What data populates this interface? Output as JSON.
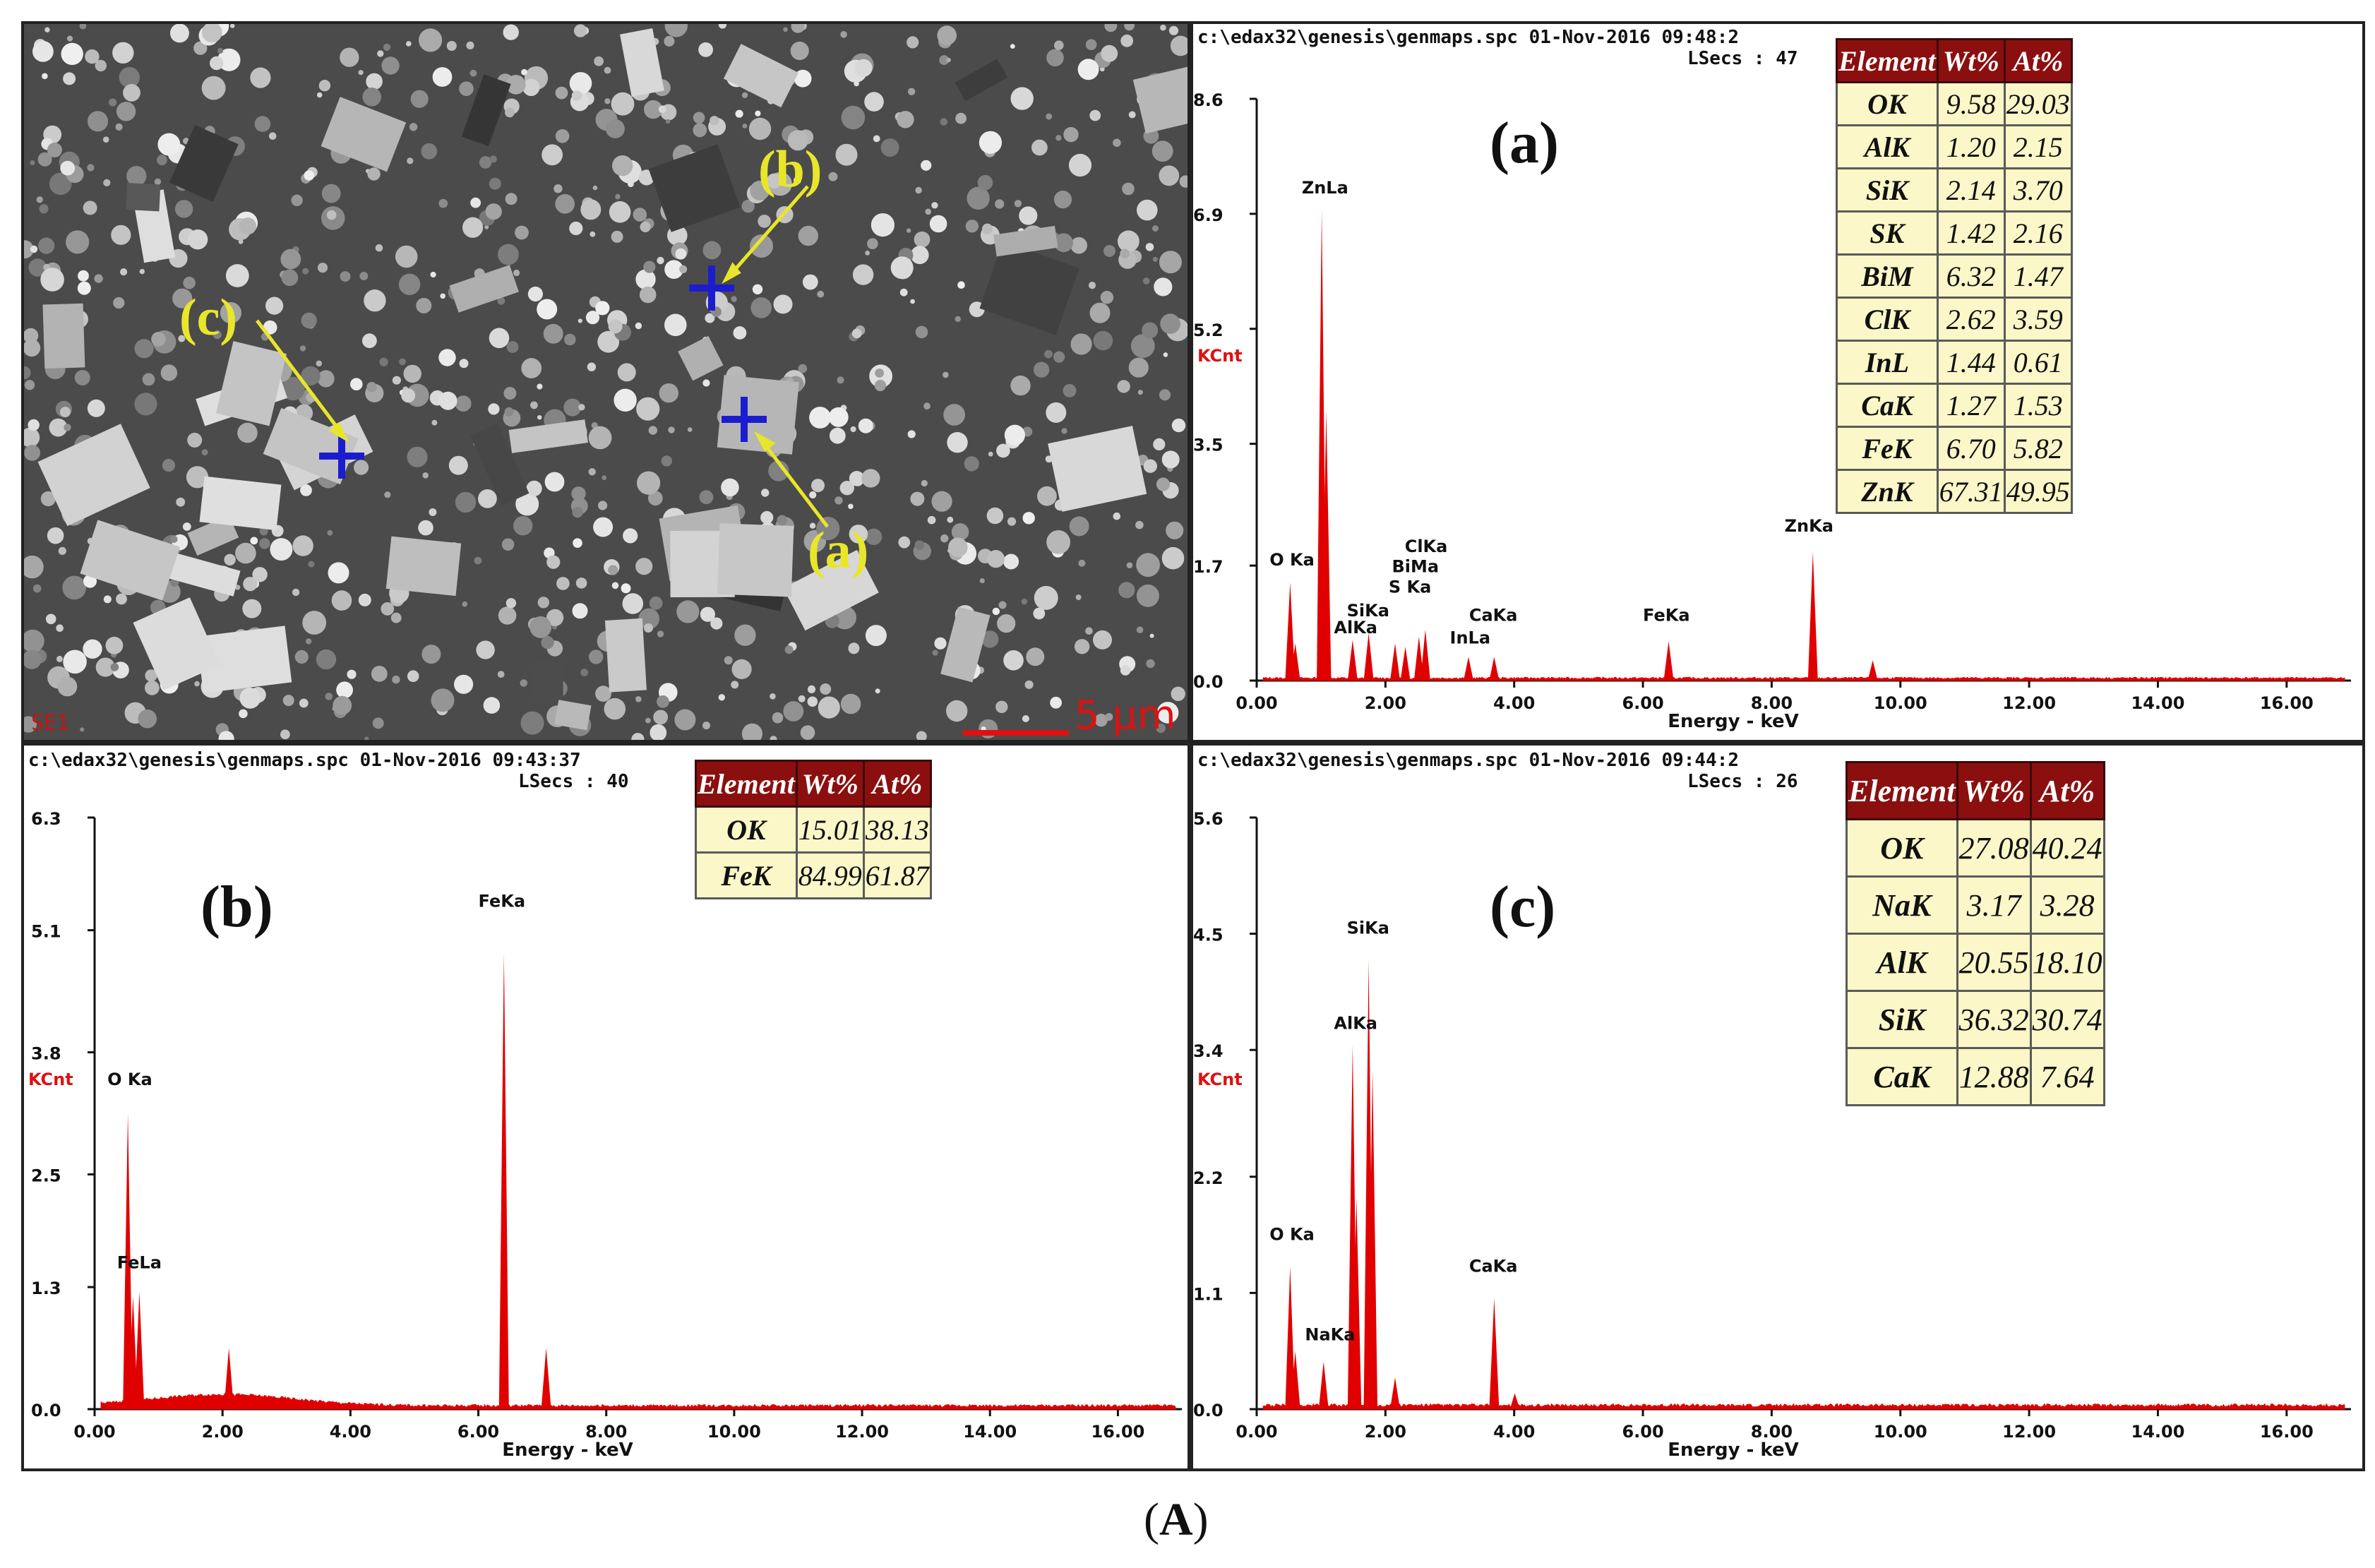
{
  "figure_caption": {
    "open": "(",
    "letter": "A",
    "close": ")"
  },
  "sem": {
    "corner_label": "SE1",
    "scale_bar": "5 μm",
    "markers": [
      {
        "label": "(a)",
        "color": "#e8e62a"
      },
      {
        "label": "(b)",
        "color": "#e8e62a"
      },
      {
        "label": "(c)",
        "color": "#e8e62a"
      }
    ],
    "cross_color": "#1c1ccf"
  },
  "colors": {
    "spectrum": "#e00000",
    "table_header": "#8b0f0f",
    "table_cell": "#fbf7c8"
  },
  "table_headers": [
    "Element",
    "Wt%",
    "At%"
  ],
  "chart_data": [
    {
      "type": "line",
      "panel_label": "(a)",
      "header_line1": "c:\\edax32\\genesis\\genmaps.spc  01-Nov-2016 09:48:2",
      "header_line2": "LSecs :  47",
      "xlabel": "Energy - keV",
      "ylabel": "KCnt",
      "xlim": [
        0,
        17
      ],
      "ylim": [
        0,
        8.6
      ],
      "x_ticks": [
        "0.00",
        "2.00",
        "4.00",
        "6.00",
        "8.00",
        "10.00",
        "12.00",
        "14.00",
        "16.00"
      ],
      "y_ticks": [
        "0.0",
        "1.7",
        "3.5",
        "5.2",
        "6.9",
        "8.6"
      ],
      "peaks": [
        {
          "x": 0.52,
          "y": 1.45
        },
        {
          "x": 0.6,
          "y": 0.55
        },
        {
          "x": 1.01,
          "y": 6.95
        },
        {
          "x": 1.08,
          "y": 4.0
        },
        {
          "x": 1.49,
          "y": 0.6
        },
        {
          "x": 1.74,
          "y": 0.7
        },
        {
          "x": 2.31,
          "y": 0.5
        },
        {
          "x": 2.52,
          "y": 0.65
        },
        {
          "x": 2.62,
          "y": 0.75
        },
        {
          "x": 2.15,
          "y": 0.55
        },
        {
          "x": 3.29,
          "y": 0.35
        },
        {
          "x": 3.69,
          "y": 0.35
        },
        {
          "x": 6.4,
          "y": 0.58
        },
        {
          "x": 8.64,
          "y": 1.9
        },
        {
          "x": 9.57,
          "y": 0.3
        }
      ],
      "peak_labels": [
        {
          "text": "O Ka",
          "x": 0.2,
          "y": 1.7
        },
        {
          "text": "ZnLa",
          "x": 0.7,
          "y": 7.2
        },
        {
          "text": "SiKa",
          "x": 1.4,
          "y": 0.95
        },
        {
          "text": "AlKa",
          "x": 1.2,
          "y": 0.7
        },
        {
          "text": "ClKa",
          "x": 2.3,
          "y": 1.9
        },
        {
          "text": "BiMa",
          "x": 2.1,
          "y": 1.6
        },
        {
          "text": "S Ka",
          "x": 2.05,
          "y": 1.3
        },
        {
          "text": "CaKa",
          "x": 3.3,
          "y": 0.88
        },
        {
          "text": "InLa",
          "x": 3.0,
          "y": 0.55
        },
        {
          "text": "FeKa",
          "x": 6.0,
          "y": 0.88
        },
        {
          "text": "ZnKa",
          "x": 8.2,
          "y": 2.2
        }
      ],
      "table": [
        [
          "OK",
          "9.58",
          "29.03"
        ],
        [
          "AlK",
          "1.20",
          "2.15"
        ],
        [
          "SiK",
          "2.14",
          "3.70"
        ],
        [
          "SK",
          "1.42",
          "2.16"
        ],
        [
          "BiM",
          "6.32",
          "1.47"
        ],
        [
          "ClK",
          "2.62",
          "3.59"
        ],
        [
          "InL",
          "1.44",
          "0.61"
        ],
        [
          "CaK",
          "1.27",
          "1.53"
        ],
        [
          "FeK",
          "6.70",
          "5.82"
        ],
        [
          "ZnK",
          "67.31",
          "49.95"
        ]
      ]
    },
    {
      "type": "line",
      "panel_label": "(b)",
      "header_line1": "c:\\edax32\\genesis\\genmaps.spc  01-Nov-2016 09:43:37",
      "header_line2": "LSecs :  40",
      "xlabel": "Energy - keV",
      "ylabel": "KCnt",
      "xlim": [
        0,
        17
      ],
      "ylim": [
        0,
        6.3
      ],
      "x_ticks": [
        "0.00",
        "2.00",
        "4.00",
        "6.00",
        "8.00",
        "10.00",
        "12.00",
        "14.00",
        "16.00"
      ],
      "y_ticks": [
        "0.0",
        "1.3",
        "2.5",
        "3.8",
        "5.1",
        "6.3"
      ],
      "peaks": [
        {
          "x": 0.52,
          "y": 3.15
        },
        {
          "x": 0.6,
          "y": 1.2
        },
        {
          "x": 0.7,
          "y": 1.25
        },
        {
          "x": 2.1,
          "y": 0.65
        },
        {
          "x": 6.4,
          "y": 4.85
        },
        {
          "x": 7.06,
          "y": 0.65
        }
      ],
      "peak_labels": [
        {
          "text": "O Ka",
          "x": 0.2,
          "y": 3.45
        },
        {
          "text": "FeLa",
          "x": 0.35,
          "y": 1.5
        },
        {
          "text": "FeKa",
          "x": 6.0,
          "y": 5.35
        }
      ],
      "table": [
        [
          "OK",
          "15.01",
          "38.13"
        ],
        [
          "FeK",
          "84.99",
          "61.87"
        ]
      ]
    },
    {
      "type": "line",
      "panel_label": "(c)",
      "header_line1": "c:\\edax32\\genesis\\genmaps.spc  01-Nov-2016 09:44:2",
      "header_line2": "LSecs :  26",
      "xlabel": "Energy - keV",
      "ylabel": "KCnt",
      "xlim": [
        0,
        17
      ],
      "ylim": [
        0,
        5.6
      ],
      "x_ticks": [
        "0.00",
        "2.00",
        "4.00",
        "6.00",
        "8.00",
        "10.00",
        "12.00",
        "14.00",
        "16.00"
      ],
      "y_ticks": [
        "0.0",
        "1.1",
        "2.2",
        "3.4",
        "4.5",
        "5.6"
      ],
      "peaks": [
        {
          "x": 0.52,
          "y": 1.35
        },
        {
          "x": 0.6,
          "y": 0.55
        },
        {
          "x": 1.04,
          "y": 0.45
        },
        {
          "x": 1.49,
          "y": 3.45
        },
        {
          "x": 1.55,
          "y": 2.0
        },
        {
          "x": 1.74,
          "y": 4.25
        },
        {
          "x": 1.8,
          "y": 3.2
        },
        {
          "x": 2.15,
          "y": 0.3
        },
        {
          "x": 3.69,
          "y": 1.05
        },
        {
          "x": 4.01,
          "y": 0.15
        }
      ],
      "peak_labels": [
        {
          "text": "O Ka",
          "x": 0.2,
          "y": 1.6
        },
        {
          "text": "NaKa",
          "x": 0.75,
          "y": 0.65
        },
        {
          "text": "AlKa",
          "x": 1.2,
          "y": 3.6
        },
        {
          "text": "SiKa",
          "x": 1.4,
          "y": 4.5
        },
        {
          "text": "CaKa",
          "x": 3.3,
          "y": 1.3
        }
      ],
      "table": [
        [
          "OK",
          "27.08",
          "40.24"
        ],
        [
          "NaK",
          "3.17",
          "3.28"
        ],
        [
          "AlK",
          "20.55",
          "18.10"
        ],
        [
          "SiK",
          "36.32",
          "30.74"
        ],
        [
          "CaK",
          "12.88",
          "7.64"
        ]
      ]
    }
  ]
}
